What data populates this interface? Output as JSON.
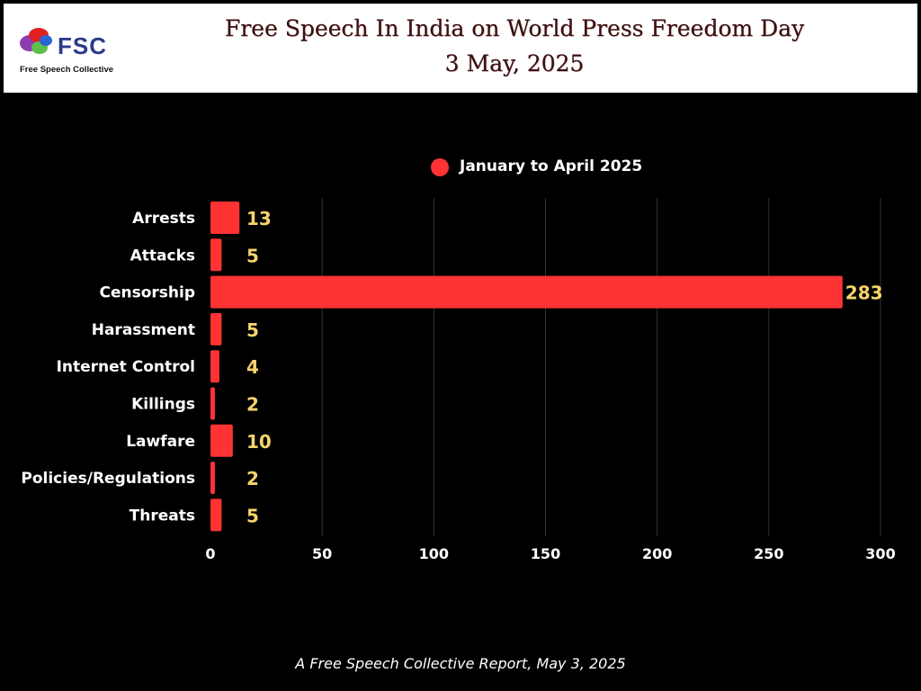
{
  "header": {
    "logo_text": "FSC",
    "logo_subtitle": "Free Speech Collective",
    "title_line1": "Free Speech In India on World Press Freedom Day",
    "title_line2": "3 May, 2025"
  },
  "footer": {
    "text": "A Free Speech Collective Report, May 3, 2025"
  },
  "colors": {
    "bar": "#ff3333",
    "value_label": "#f7d36b",
    "background": "#000000",
    "grid": "#333333"
  },
  "chart_data": {
    "type": "bar",
    "orientation": "horizontal",
    "categories": [
      "Arrests",
      "Attacks",
      "Censorship",
      "Harassment",
      "Internet Control",
      "Killings",
      "Lawfare",
      "Policies/Regulations",
      "Threats"
    ],
    "series": [
      {
        "name": "January to April 2025",
        "values": [
          13,
          5,
          283,
          5,
          4,
          2,
          10,
          2,
          5
        ]
      }
    ],
    "xlim": [
      0,
      300
    ],
    "xticks": [
      0,
      50,
      100,
      150,
      200,
      250,
      300
    ],
    "grid": true,
    "legend_position": "top",
    "data_labels": true
  }
}
